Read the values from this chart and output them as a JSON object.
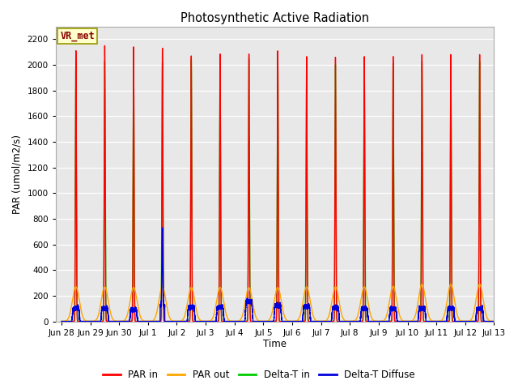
{
  "title": "Photosynthetic Active Radiation",
  "ylabel": "PAR (umol/m2/s)",
  "xlabel": "Time",
  "ylim": [
    0,
    2300
  ],
  "yticks": [
    0,
    200,
    400,
    600,
    800,
    1000,
    1200,
    1400,
    1600,
    1800,
    2000,
    2200
  ],
  "fig_bg_color": "#ffffff",
  "plot_bg_color": "#e8e8e8",
  "grid_color": "#ffffff",
  "annotation_text": "VR_met",
  "annotation_bg": "#ffffcc",
  "annotation_border": "#999900",
  "colors": {
    "PAR_in": "#ff0000",
    "PAR_out": "#ffa500",
    "Delta_T_in": "#00cc00",
    "Delta_T_Diffuse": "#0000dd"
  },
  "legend_labels": [
    "PAR in",
    "PAR out",
    "Delta-T in",
    "Delta-T Diffuse"
  ],
  "peaks": [
    {
      "day": 0.5,
      "par_in": 2110,
      "par_out": 270,
      "delta_t": 2010,
      "diffuse": 100,
      "diffuse_flat": true
    },
    {
      "day": 1.5,
      "par_in": 2150,
      "par_out": 270,
      "delta_t": 2030,
      "diffuse": 100,
      "diffuse_flat": true
    },
    {
      "day": 2.5,
      "par_in": 2140,
      "par_out": 265,
      "delta_t": 2020,
      "diffuse": 90,
      "diffuse_flat": true
    },
    {
      "day": 3.5,
      "par_in": 2130,
      "par_out": 270,
      "delta_t": 2020,
      "diffuse": 600,
      "diffuse_flat": false
    },
    {
      "day": 4.5,
      "par_in": 2070,
      "par_out": 265,
      "delta_t": 2040,
      "diffuse": 110,
      "diffuse_flat": true
    },
    {
      "day": 5.5,
      "par_in": 2085,
      "par_out": 265,
      "delta_t": 2055,
      "diffuse": 110,
      "diffuse_flat": true
    },
    {
      "day": 6.5,
      "par_in": 2085,
      "par_out": 265,
      "delta_t": 2050,
      "diffuse": 155,
      "diffuse_flat": true
    },
    {
      "day": 7.5,
      "par_in": 2110,
      "par_out": 265,
      "delta_t": 2035,
      "diffuse": 125,
      "diffuse_flat": true
    },
    {
      "day": 8.5,
      "par_in": 2065,
      "par_out": 270,
      "delta_t": 2005,
      "diffuse": 115,
      "diffuse_flat": true
    },
    {
      "day": 9.5,
      "par_in": 2060,
      "par_out": 270,
      "delta_t": 2000,
      "diffuse": 105,
      "diffuse_flat": true
    },
    {
      "day": 10.5,
      "par_in": 2065,
      "par_out": 270,
      "delta_t": 2030,
      "diffuse": 100,
      "diffuse_flat": true
    },
    {
      "day": 11.5,
      "par_in": 2065,
      "par_out": 275,
      "delta_t": 2025,
      "diffuse": 100,
      "diffuse_flat": true
    },
    {
      "day": 12.5,
      "par_in": 2080,
      "par_out": 290,
      "delta_t": 2030,
      "diffuse": 100,
      "diffuse_flat": true
    },
    {
      "day": 13.5,
      "par_in": 2080,
      "par_out": 290,
      "delta_t": 2030,
      "diffuse": 100,
      "diffuse_flat": true
    },
    {
      "day": 14.5,
      "par_in": 2080,
      "par_out": 290,
      "delta_t": 2030,
      "diffuse": 100,
      "diffuse_flat": true
    }
  ],
  "x_tick_positions": [
    0,
    1,
    2,
    3,
    4,
    5,
    6,
    7,
    8,
    9,
    10,
    11,
    12,
    13,
    14,
    15
  ],
  "x_tick_labels": [
    "Jun 28",
    "Jun 29",
    "Jun 30",
    "Jul 1",
    "Jul 2",
    "Jul 3",
    "Jul 4",
    "Jul 5",
    "Jul 6",
    "Jul 7",
    "Jul 8",
    "Jul 9",
    "Jul 10",
    "Jul 11",
    "Jul 12",
    "Jul 13"
  ]
}
